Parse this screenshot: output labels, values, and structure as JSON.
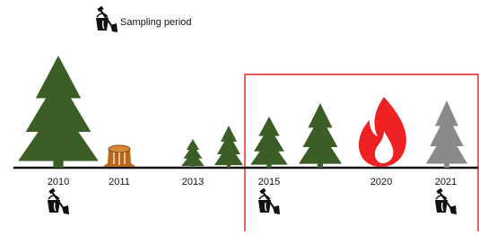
{
  "legend": {
    "label": "Sampling period"
  },
  "timeline": {
    "labels": [
      "2010",
      "2011",
      "2013",
      "2015",
      "2020",
      "2021"
    ]
  }
}
